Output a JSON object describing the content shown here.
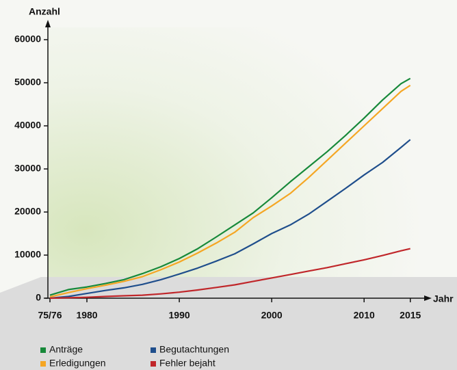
{
  "chart_data": {
    "type": "line",
    "y_label": "Anzahl",
    "x_label": "Jahr",
    "x": [
      1976,
      1978,
      1980,
      1982,
      1984,
      1986,
      1988,
      1990,
      1992,
      1994,
      1996,
      1998,
      2000,
      2002,
      2004,
      2006,
      2008,
      2010,
      2012,
      2014,
      2015
    ],
    "series": [
      {
        "name": "Anträge",
        "color": "#17893a",
        "values": [
          700,
          2000,
          2600,
          3400,
          4300,
          5700,
          7300,
          9200,
          11500,
          14200,
          17000,
          19800,
          23300,
          27000,
          30500,
          34000,
          37800,
          41800,
          46000,
          49800,
          51000
        ]
      },
      {
        "name": "Erledigungen",
        "color": "#f5a623",
        "values": [
          300,
          1300,
          2200,
          3000,
          3900,
          5000,
          6600,
          8400,
          10500,
          12800,
          15300,
          18700,
          21400,
          24300,
          28000,
          32000,
          36000,
          40000,
          44000,
          48000,
          49400
        ]
      },
      {
        "name": "Begutachtungen",
        "color": "#1f4e8c",
        "values": [
          0,
          400,
          1100,
          1800,
          2400,
          3200,
          4300,
          5600,
          7000,
          8600,
          10300,
          12600,
          15000,
          17000,
          19500,
          22500,
          25500,
          28600,
          31500,
          35000,
          36800
        ]
      },
      {
        "name": "Fehler bejaht",
        "color": "#c0262a",
        "values": [
          0,
          100,
          200,
          400,
          550,
          700,
          1000,
          1400,
          1900,
          2500,
          3100,
          3900,
          4700,
          5500,
          6300,
          7100,
          8000,
          8900,
          9900,
          11000,
          11500
        ]
      }
    ],
    "xlim": [
      1976,
      2016.5
    ],
    "xticks": [
      {
        "value": 1976,
        "label": "75/76"
      },
      1980,
      1990,
      2000,
      2010,
      2015
    ],
    "ylim": [
      0,
      60000
    ],
    "yticks": [
      0,
      10000,
      20000,
      30000,
      40000,
      50000,
      60000
    ]
  }
}
